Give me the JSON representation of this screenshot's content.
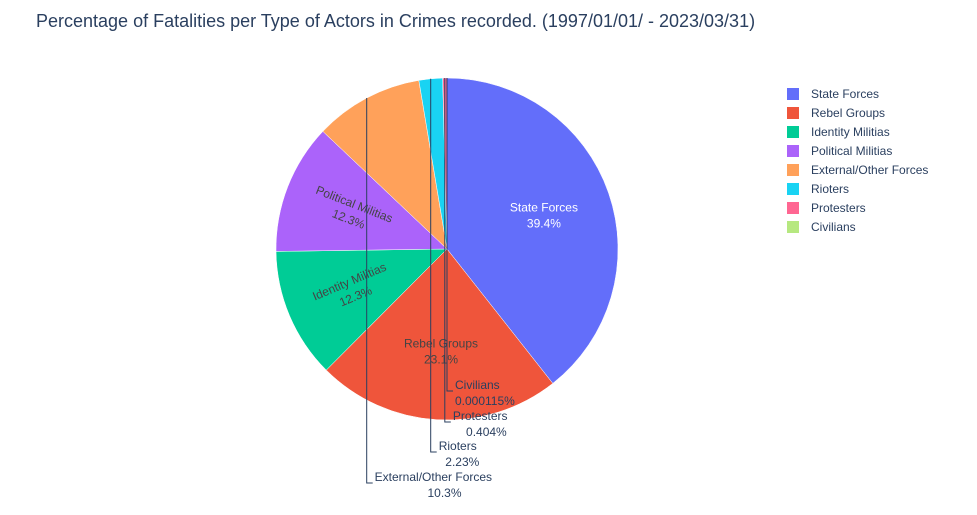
{
  "chart_data": {
    "type": "pie",
    "title": "Percentage of Fatalities per Type of Actors in Crimes recorded. (1997/01/01/ - 2023/03/31)",
    "legend_position": "top-right",
    "slices": [
      {
        "name": "State Forces",
        "value": 39.4,
        "label": "39.4%",
        "color": "#636efa"
      },
      {
        "name": "Rebel Groups",
        "value": 23.1,
        "label": "23.1%",
        "color": "#ef553b"
      },
      {
        "name": "Identity Militias",
        "value": 12.3,
        "label": "12.3%",
        "color": "#00cc96"
      },
      {
        "name": "Political Militias",
        "value": 12.3,
        "label": "12.3%",
        "color": "#ab63fa"
      },
      {
        "name": "External/Other Forces",
        "value": 10.3,
        "label": "10.3%",
        "color": "#ffa15a"
      },
      {
        "name": "Rioters",
        "value": 2.23,
        "label": "2.23%",
        "color": "#19d3f3"
      },
      {
        "name": "Protesters",
        "value": 0.404,
        "label": "0.404%",
        "color": "#ff6692"
      },
      {
        "name": "Civilians",
        "value": 0.000115,
        "label": "0.000115%",
        "color": "#b6e880"
      }
    ]
  }
}
